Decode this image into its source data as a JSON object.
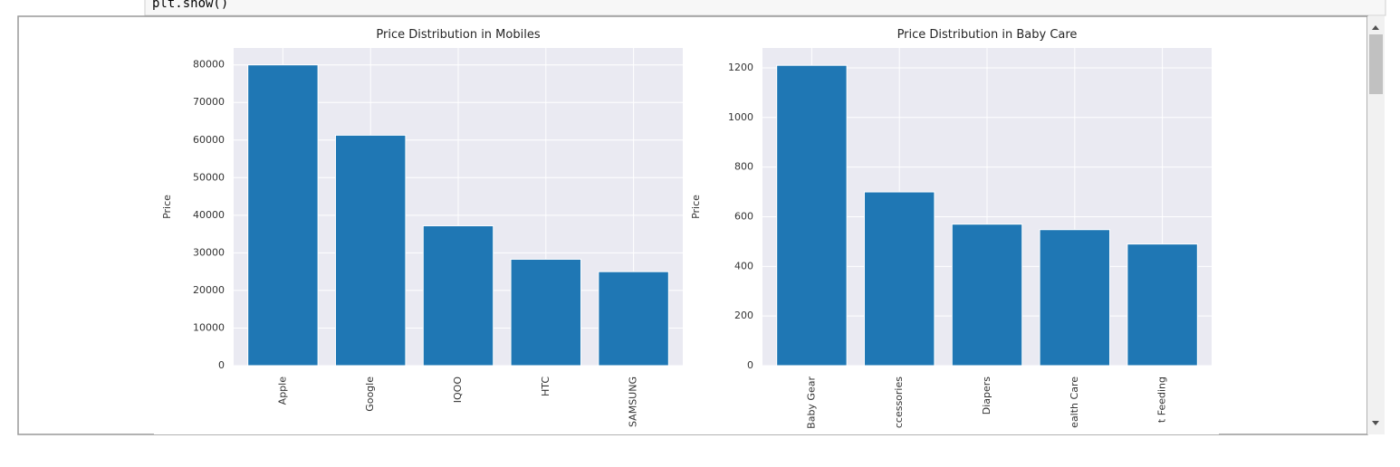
{
  "code_cell": {
    "text": "plt.show()"
  },
  "chart_data": [
    {
      "type": "bar",
      "title": "Price Distribution in Mobiles",
      "ylabel": "Price",
      "categories": [
        "Apple",
        "Google",
        "IQOO",
        "HTC",
        "SAMSUNG"
      ],
      "values": [
        80000,
        61300,
        37200,
        28300,
        25000
      ],
      "color": "#1f77b4",
      "ylim": [
        0,
        84500
      ],
      "yticks": [
        0,
        10000,
        20000,
        30000,
        40000,
        50000,
        60000,
        70000,
        80000
      ],
      "grid": true
    },
    {
      "type": "bar",
      "title": "Price Distribution in Baby Care",
      "ylabel": "Price",
      "categories": [
        "Baby Gear",
        "ccessories",
        "Diapers",
        "ealth Care",
        "t Feeding"
      ],
      "values": [
        1210,
        700,
        570,
        548,
        490
      ],
      "color": "#1f77b4",
      "ylim": [
        0,
        1280
      ],
      "yticks": [
        0,
        200,
        400,
        600,
        800,
        1000,
        1200
      ],
      "grid": true
    }
  ]
}
